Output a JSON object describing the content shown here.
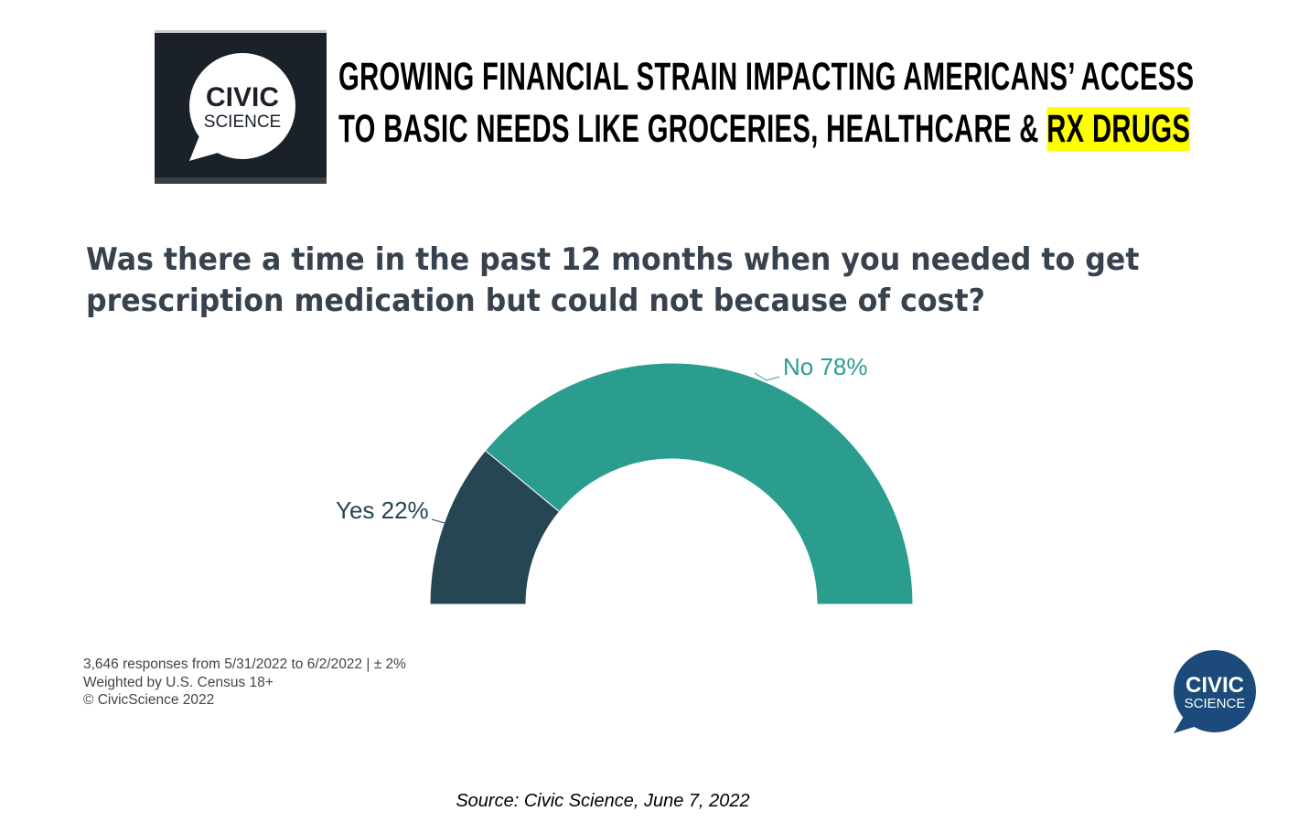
{
  "header": {
    "logo_text": [
      "CIVIC",
      "SCIENCE"
    ],
    "headline_line1": "GROWING FINANCIAL STRAIN IMPACTING AMERICANS’ ACCESS",
    "headline_line2": "TO BASIC NEEDS LIKE GROCERIES, HEALTHCARE & ",
    "headline_highlight": "RX DRUGS",
    "highlight_color": "#ffff00"
  },
  "chart_data": {
    "type": "pie",
    "variant": "half-donut",
    "title": "Was there a time in the past 12 months when you needed to get prescription medication but could not because of cost?",
    "title_line1": "Was there a time in the past 12 months when you needed to get",
    "title_line2": "prescription medication but could not because of cost?",
    "slices": [
      {
        "label": "Yes",
        "value": 22,
        "display": "Yes 22%",
        "color": "#264653"
      },
      {
        "label": "No",
        "value": 78,
        "display": "No 78%",
        "color": "#2a9d8f"
      }
    ]
  },
  "footer": {
    "line1": "3,646 responses from 5/31/2022 to 6/2/2022 | ± 2%",
    "line2": "Weighted by U.S. Census 18+",
    "line3": "© CivicScience 2022"
  },
  "bottom_logo_text": [
    "CIVIC",
    "SCIENCE"
  ],
  "source": "Source: Civic Science, June 7, 2022"
}
